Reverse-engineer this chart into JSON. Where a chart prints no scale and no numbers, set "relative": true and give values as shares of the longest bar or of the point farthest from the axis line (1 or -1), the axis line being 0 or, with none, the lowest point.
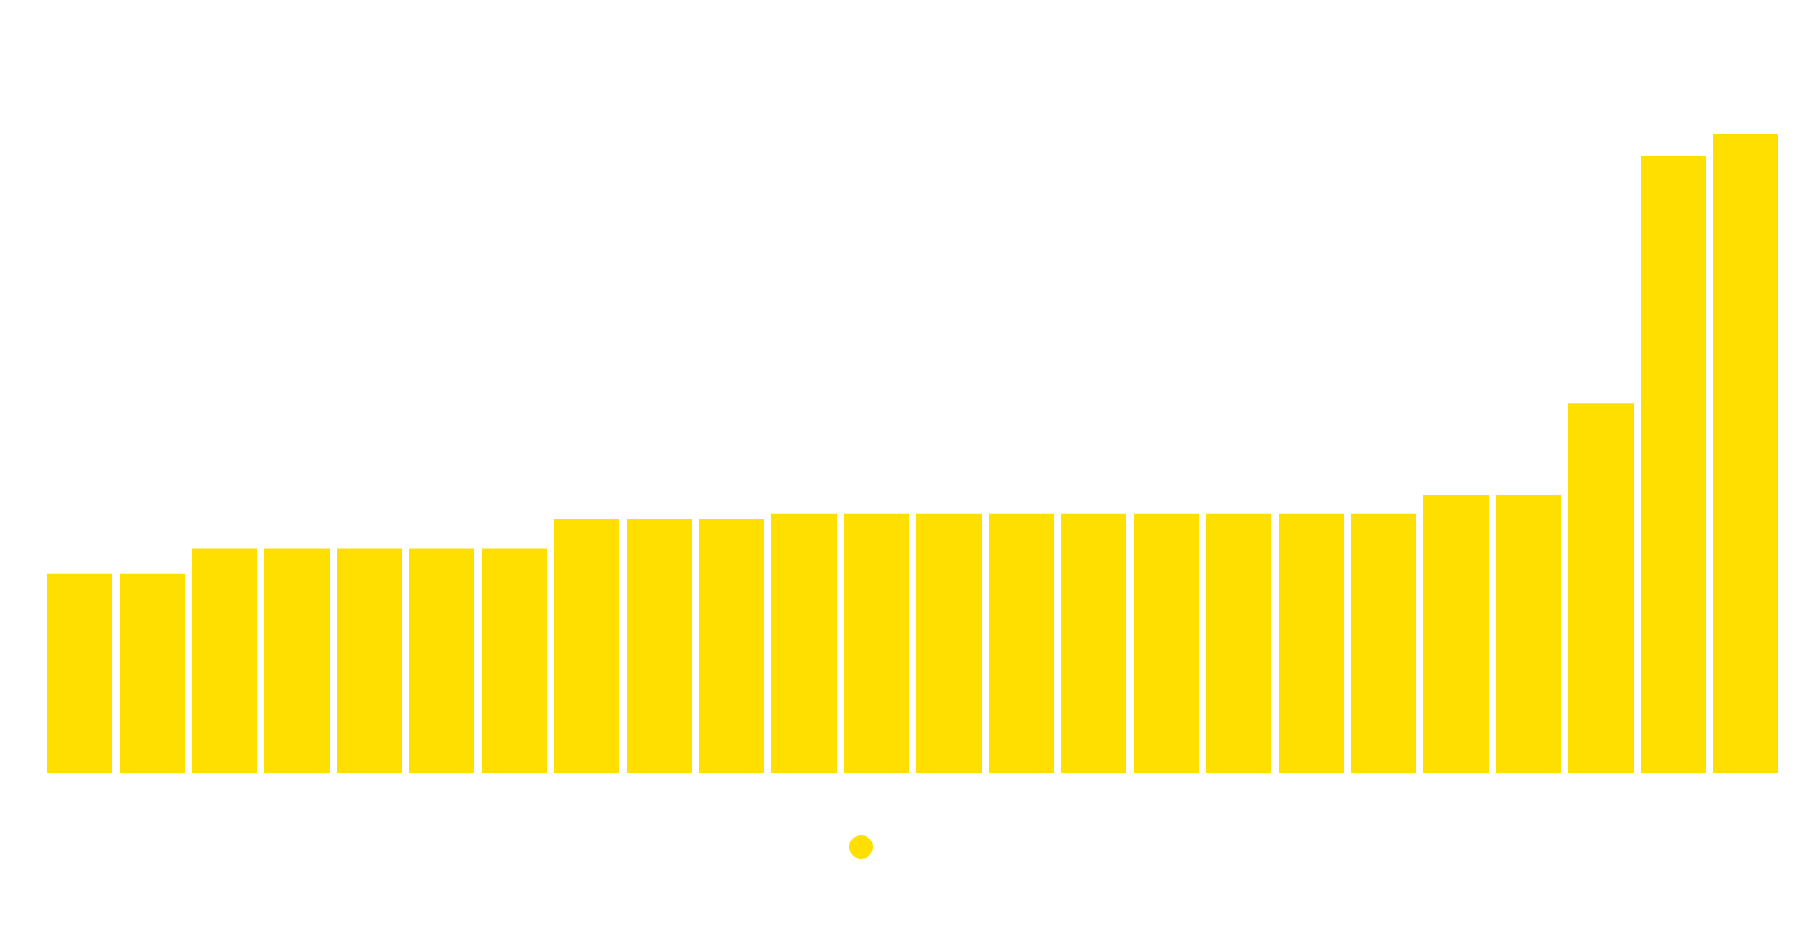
{
  "chart_data": {
    "type": "bar",
    "relative": true,
    "categories": [
      null,
      null,
      null,
      null,
      null,
      null,
      null,
      null,
      null,
      null,
      null,
      null,
      null,
      null,
      null,
      null,
      null,
      null,
      null,
      null,
      null,
      null,
      null,
      null
    ],
    "series": [
      {
        "color": "#ffdf00",
        "values": [
          0.312,
          0.312,
          0.352,
          0.352,
          0.352,
          0.352,
          0.352,
          0.398,
          0.398,
          0.398,
          0.407,
          0.407,
          0.407,
          0.407,
          0.407,
          0.407,
          0.407,
          0.407,
          0.407,
          0.436,
          0.436,
          0.579,
          0.966,
          1
        ]
      }
    ],
    "grid": false
  }
}
